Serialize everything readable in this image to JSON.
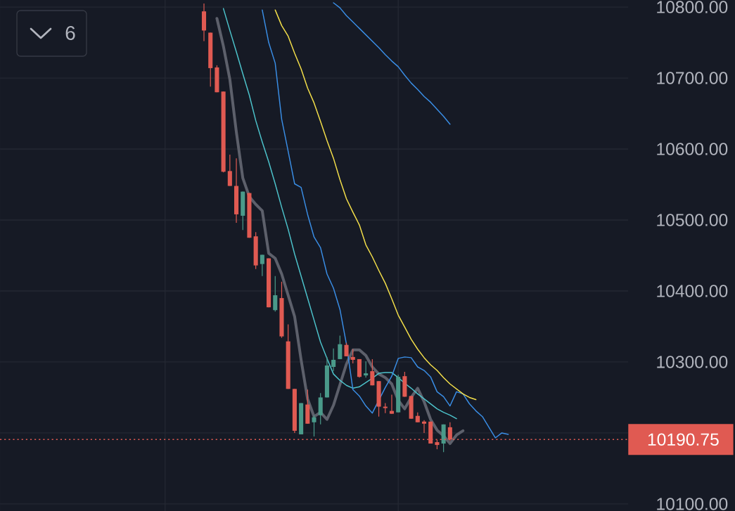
{
  "chart_data": {
    "type": "candlestick",
    "categories": [
      null,
      null,
      null,
      null,
      null,
      null,
      null,
      null,
      null,
      null,
      null,
      null,
      null,
      null,
      null,
      null,
      null,
      null,
      null,
      null,
      null,
      null,
      null,
      null,
      null,
      null,
      null,
      null,
      null,
      null,
      null,
      null,
      null,
      null,
      null,
      null,
      null,
      null,
      null,
      null,
      null,
      null,
      null,
      null,
      null,
      null,
      null,
      null,
      null,
      null,
      null,
      null,
      null,
      null,
      null,
      null,
      null,
      null,
      null,
      null,
      null,
      null,
      null,
      null,
      null,
      null,
      null,
      null,
      null,
      null,
      null,
      null,
      null,
      null,
      null,
      null,
      null,
      null,
      null,
      null,
      null,
      null,
      null,
      null,
      null,
      null,
      null,
      null,
      null,
      null,
      null,
      null,
      null,
      null,
      null,
      null,
      null
    ],
    "ohlc": [
      null,
      null,
      null,
      null,
      null,
      null,
      null,
      null,
      null,
      null,
      null,
      null,
      null,
      null,
      null,
      null,
      null,
      null,
      null,
      null,
      null,
      null,
      null,
      null,
      null,
      null,
      null,
      null,
      null,
      null,
      null,
      [
        10794,
        10805,
        10752,
        10767
      ],
      [
        10764,
        10764,
        10688,
        10714
      ],
      [
        10715,
        10718,
        10680,
        10680
      ],
      [
        10681,
        10681,
        10567,
        10568
      ],
      [
        10569,
        10592,
        10548,
        10548
      ],
      [
        10548,
        10587,
        10496,
        10508
      ],
      [
        10506,
        10540,
        10486,
        10540
      ],
      [
        10538,
        10538,
        10475,
        10475
      ],
      [
        10477,
        10483,
        10431,
        10436
      ],
      [
        10438,
        10451,
        10421,
        10451
      ],
      [
        10446,
        10446,
        10377,
        10377
      ],
      [
        10373,
        10421,
        10371,
        10394
      ],
      [
        10390,
        10413,
        10334,
        10336
      ],
      [
        10329,
        10353,
        10262,
        10262
      ],
      [
        10262,
        10262,
        10200,
        10203
      ],
      [
        10198,
        10242,
        10198,
        10242
      ],
      [
        10240,
        10261,
        10213,
        10213
      ],
      [
        10215,
        10225,
        10195,
        10222
      ],
      [
        10225,
        10256,
        10212,
        10250
      ],
      [
        10250,
        10307,
        10250,
        10295
      ],
      [
        10293,
        10319,
        10287,
        10303
      ],
      [
        10304,
        10337,
        10304,
        10325
      ],
      [
        10324,
        10327,
        10308,
        10308
      ],
      [
        10307,
        10318,
        10298,
        10303
      ],
      [
        10304,
        10304,
        10278,
        10279
      ],
      [
        10281,
        10301,
        10278,
        10284
      ],
      [
        10287,
        10304,
        10267,
        10267
      ],
      [
        10273,
        10273,
        10223,
        10237
      ],
      [
        10237,
        10242,
        10228,
        10235
      ],
      [
        10231,
        10254,
        10227,
        10227
      ],
      [
        10229,
        10282,
        10229,
        10279
      ],
      [
        10280,
        10286,
        10251,
        10251
      ],
      [
        10252,
        10252,
        10220,
        10220
      ],
      [
        10224,
        10229,
        10215,
        10215
      ],
      [
        10216,
        10218,
        10200,
        10213
      ],
      [
        10216,
        10216,
        10185,
        10185
      ],
      [
        10187,
        10190,
        10177,
        10183
      ],
      [
        10185,
        10212,
        10173,
        10212
      ],
      [
        10208,
        10215,
        10189,
        10190.75
      ],
      null,
      null,
      null,
      null,
      null,
      null,
      null,
      null,
      null,
      null,
      null,
      null,
      null,
      null,
      null,
      null,
      null,
      null,
      null,
      null,
      null,
      null,
      null,
      null,
      null,
      null,
      null
    ],
    "colors": [
      null,
      null,
      null,
      null,
      null,
      null,
      null,
      null,
      null,
      null,
      null,
      null,
      null,
      null,
      null,
      null,
      null,
      null,
      null,
      null,
      null,
      null,
      null,
      null,
      null,
      null,
      null,
      null,
      null,
      null,
      null,
      "#e05a52",
      "#e05a52",
      "#e05a52",
      "#e05a52",
      "#e05a52",
      "#e05a52",
      "#4a9a8a",
      "#e05a52",
      "#e05a52",
      "#4a9a8a",
      "#e05a52",
      "#4a9a8a",
      "#e05a52",
      "#e05a52",
      "#e05a52",
      "#4a9a8a",
      "#e05a52",
      "#4a9a8a",
      "#4a9a8a",
      "#4a9a8a",
      "#4a9a8a",
      "#4a9a8a",
      "#e05a52",
      "#e05a52",
      "#e05a52",
      "#4a9a8a",
      "#e05a52",
      "#e05a52",
      "#e05a52",
      "#e05a52",
      "#4a9a8a",
      "#e05a52",
      "#e05a52",
      "#e05a52",
      "#e05a52",
      "#e05a52",
      "#e05a52",
      "#4a9a8a",
      "#e05a52",
      null,
      null,
      null,
      null,
      null,
      null,
      null,
      null,
      null,
      null,
      null,
      null,
      null,
      null,
      null,
      null,
      null,
      null,
      null,
      null,
      null,
      null,
      null,
      null,
      null,
      null,
      null
    ],
    "series": [
      {
        "type": "line",
        "color": "#5d606b",
        "values": [
          null,
          null,
          null,
          null,
          null,
          null,
          null,
          null,
          null,
          null,
          null,
          null,
          null,
          null,
          null,
          null,
          null,
          null,
          null,
          null,
          null,
          null,
          null,
          null,
          null,
          null,
          null,
          null,
          null,
          null,
          null,
          null,
          null,
          10784,
          10745,
          10698,
          10624,
          10559,
          10533,
          10522,
          10513,
          10453,
          10446,
          10424,
          10394,
          10364,
          10303,
          10248,
          10223,
          10229,
          10219,
          10239,
          10268,
          10297,
          10317,
          10317,
          10309,
          10293,
          10283,
          10278,
          10269,
          10246,
          10234,
          10250,
          10263,
          10244,
          10219,
          10204,
          10196,
          10185,
          10197,
          10203,
          null,
          null,
          null,
          null,
          null,
          null,
          null,
          null,
          null,
          null,
          null,
          null,
          null,
          null,
          null,
          null,
          null,
          null,
          null,
          null,
          null,
          null,
          null,
          null,
          null
        ]
      },
      {
        "type": "line",
        "color": "#4dc4cc",
        "values": [
          null,
          null,
          null,
          null,
          null,
          null,
          null,
          null,
          null,
          null,
          null,
          null,
          null,
          null,
          null,
          null,
          null,
          null,
          null,
          null,
          null,
          null,
          null,
          null,
          null,
          null,
          null,
          null,
          null,
          null,
          null,
          null,
          null,
          null,
          10798,
          10767,
          10737,
          10706,
          10676,
          10640,
          10610,
          10582,
          10551,
          10518,
          10487,
          10452,
          10421,
          10390,
          10359,
          10328,
          10305,
          10283,
          10274,
          10267,
          10263,
          10265,
          10271,
          10277,
          10284,
          10285,
          10285,
          10278,
          10270,
          10263,
          10255,
          10248,
          10241,
          10234,
          10229,
          10225,
          10220,
          null,
          null,
          null,
          null,
          null,
          null,
          null,
          null,
          null,
          null,
          null,
          null,
          null,
          null,
          null,
          null,
          null,
          null,
          null,
          null,
          null,
          null,
          null,
          null,
          null,
          null
        ]
      },
      {
        "type": "line",
        "color": "#3a8ee6",
        "values": [
          null,
          null,
          null,
          null,
          null,
          null,
          null,
          null,
          null,
          null,
          null,
          null,
          null,
          null,
          null,
          null,
          null,
          null,
          null,
          null,
          null,
          null,
          null,
          null,
          null,
          null,
          null,
          null,
          null,
          null,
          null,
          null,
          null,
          null,
          null,
          null,
          null,
          null,
          null,
          null,
          10796,
          10750,
          10721,
          10642,
          10597,
          10551,
          10546,
          10508,
          10476,
          10461,
          10424,
          10404,
          10374,
          10325,
          10261,
          10252,
          10238,
          10228,
          null,
          10264,
          10280,
          10305,
          10307,
          10306,
          10293,
          10288,
          10279,
          10258,
          10251,
          10238,
          10258,
          10255,
          10241,
          10231,
          10223,
          10208,
          10193,
          10200,
          10198,
          null,
          null,
          null,
          null,
          null,
          null,
          null,
          null,
          null,
          null,
          null,
          null,
          null,
          null,
          null,
          null,
          null,
          null
        ]
      },
      {
        "type": "line",
        "color": "#f5e04a",
        "values": [
          null,
          null,
          null,
          null,
          null,
          null,
          null,
          null,
          null,
          null,
          null,
          null,
          null,
          null,
          null,
          null,
          null,
          null,
          null,
          null,
          null,
          null,
          null,
          null,
          null,
          null,
          null,
          null,
          null,
          null,
          null,
          null,
          null,
          null,
          null,
          null,
          null,
          null,
          null,
          null,
          null,
          null,
          10796,
          10774,
          10759,
          10735,
          10713,
          10686,
          10665,
          10639,
          10612,
          10587,
          10557,
          10530,
          10511,
          10493,
          10465,
          10448,
          10429,
          10411,
          10389,
          10366,
          10349,
          10332,
          10318,
          10306,
          10296,
          10288,
          10278,
          10269,
          10262,
          10255,
          10250,
          10247,
          null,
          null,
          null,
          null,
          null,
          null,
          null,
          null,
          null,
          null,
          null,
          null,
          null,
          null,
          null,
          null,
          null,
          null,
          null,
          null,
          null,
          null,
          null
        ]
      },
      {
        "type": "line",
        "color": "#3a8ee6",
        "values": [
          null,
          null,
          null,
          null,
          null,
          null,
          null,
          null,
          null,
          null,
          null,
          null,
          null,
          null,
          null,
          null,
          null,
          null,
          null,
          null,
          null,
          null,
          null,
          null,
          null,
          null,
          null,
          null,
          null,
          null,
          null,
          null,
          null,
          null,
          null,
          null,
          null,
          null,
          null,
          null,
          null,
          null,
          null,
          null,
          null,
          null,
          null,
          null,
          null,
          null,
          null,
          10806,
          10799,
          10788,
          10779,
          10770,
          10761,
          10752,
          10743,
          10733,
          10724,
          10716,
          10704,
          10693,
          10684,
          10674,
          10666,
          10656,
          10646,
          10635,
          null,
          null,
          null,
          null,
          null,
          null,
          null,
          null,
          null,
          null,
          null,
          null,
          null,
          null,
          null,
          null,
          null,
          null,
          null,
          null,
          null,
          null,
          null,
          null,
          null,
          null,
          null
        ]
      }
    ],
    "ylim": [
      10090,
      10810
    ],
    "yticks": [
      {
        "value": 10100,
        "label": "10100.00"
      },
      {
        "value": 10200,
        "label": null
      },
      {
        "value": 10300,
        "label": "10300.00"
      },
      {
        "value": 10400,
        "label": "10400.00"
      },
      {
        "value": 10500,
        "label": "10500.00"
      },
      {
        "value": 10600,
        "label": "10600.00"
      },
      {
        "value": 10700,
        "label": "10700.00"
      },
      {
        "value": 10800,
        "label": "10800.00"
      }
    ],
    "grid": true,
    "tick_labels": "y",
    "ref_lines": [
      {
        "axis": "y",
        "value": 10190.75,
        "label": "10190.75",
        "color": "#e05a52",
        "line_style": "dotted"
      }
    ],
    "annotations": [
      "6"
    ]
  }
}
